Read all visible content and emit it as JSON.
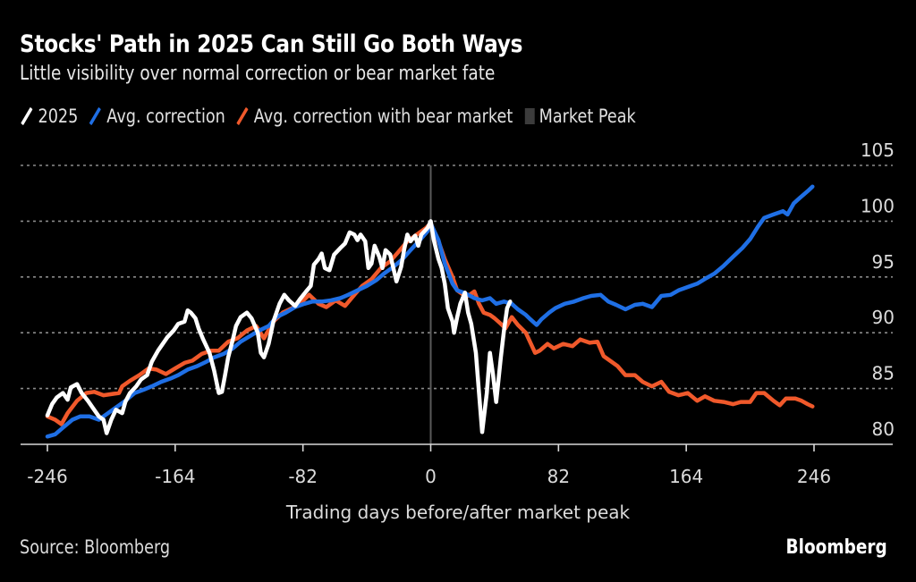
{
  "chart_data": {
    "type": "line",
    "title": "Stocks' Path in 2025 Can Still Go Both Ways",
    "subtitle": "Little visibility over normal correction or bear market fate",
    "xlabel": "Trading days before/after market peak",
    "ylabel": "",
    "xlim": [
      -246,
      246
    ],
    "ylim": [
      80,
      105
    ],
    "x_ticks": [
      -246,
      -164,
      -82,
      0,
      82,
      164,
      246
    ],
    "x_tick_labels": [
      "-246",
      "-164",
      "-82",
      "0",
      "82",
      "164",
      "246"
    ],
    "y_ticks": [
      80,
      85,
      90,
      95,
      100,
      105
    ],
    "y_tick_labels": [
      "80",
      "85",
      "90",
      "95",
      "100",
      "105"
    ],
    "y_axis_side": "right",
    "grid": "horizontal-dotted",
    "legend_position": "top-left",
    "legend": [
      {
        "name": "2025",
        "type": "line",
        "color": "#ffffff"
      },
      {
        "name": "Avg. correction",
        "type": "line",
        "color": "#1f6fe5"
      },
      {
        "name": "Avg. correction with bear market",
        "type": "line",
        "color": "#f0592b"
      },
      {
        "name": "Market Peak",
        "type": "marker",
        "color": "#3c3c3c"
      }
    ],
    "annotations": [
      {
        "type": "vertical-line",
        "x": 0,
        "label": "Market Peak",
        "color": "#5a5a5a"
      }
    ],
    "series": [
      {
        "name": "Avg. correction with bear market",
        "color": "#f0592b",
        "points": [
          [
            -246,
            82.5
          ],
          [
            -241,
            82.2
          ],
          [
            -237,
            81.8
          ],
          [
            -233,
            82.8
          ],
          [
            -227,
            83.9
          ],
          [
            -221,
            84.6
          ],
          [
            -216,
            84.7
          ],
          [
            -210,
            84.4
          ],
          [
            -200,
            84.6
          ],
          [
            -198,
            85.2
          ],
          [
            -193,
            85.7
          ],
          [
            -187,
            86.2
          ],
          [
            -181,
            86.8
          ],
          [
            -176,
            86.7
          ],
          [
            -170,
            86.3
          ],
          [
            -164,
            86.8
          ],
          [
            -158,
            87.3
          ],
          [
            -153,
            87.5
          ],
          [
            -147,
            88.1
          ],
          [
            -141,
            88.4
          ],
          [
            -136,
            88.4
          ],
          [
            -130,
            89.2
          ],
          [
            -124,
            89.5
          ],
          [
            -118,
            90.2
          ],
          [
            -112,
            90.6
          ],
          [
            -107,
            89.5
          ],
          [
            -101,
            91.0
          ],
          [
            -95,
            91.8
          ],
          [
            -89,
            92.2
          ],
          [
            -84,
            92.6
          ],
          [
            -78,
            93.4
          ],
          [
            -72,
            92.6
          ],
          [
            -67,
            92.3
          ],
          [
            -61,
            92.9
          ],
          [
            -55,
            92.4
          ],
          [
            -49,
            93.4
          ],
          [
            -44,
            94.2
          ],
          [
            -38,
            94.8
          ],
          [
            -32,
            95.8
          ],
          [
            -26,
            96.4
          ],
          [
            -21,
            97.2
          ],
          [
            -15,
            98.2
          ],
          [
            -9,
            98.8
          ],
          [
            -3,
            99.4
          ],
          [
            0,
            99.8
          ],
          [
            5,
            98.2
          ],
          [
            9,
            96.6
          ],
          [
            14,
            95.0
          ],
          [
            17,
            93.8
          ],
          [
            21,
            93.4
          ],
          [
            24,
            93.3
          ],
          [
            28,
            93.7
          ],
          [
            31,
            92.6
          ],
          [
            34,
            91.8
          ],
          [
            38,
            91.6
          ],
          [
            41,
            91.3
          ],
          [
            45,
            90.8
          ],
          [
            48,
            90.4
          ],
          [
            52,
            91.4
          ],
          [
            56,
            90.7
          ],
          [
            61,
            90.0
          ],
          [
            64,
            89.1
          ],
          [
            67,
            88.2
          ],
          [
            70,
            88.4
          ],
          [
            75,
            89.0
          ],
          [
            79,
            88.6
          ],
          [
            85,
            89.0
          ],
          [
            91,
            88.8
          ],
          [
            96,
            89.4
          ],
          [
            102,
            89.1
          ],
          [
            107,
            89.2
          ],
          [
            111,
            87.9
          ],
          [
            116,
            87.4
          ],
          [
            120,
            87.0
          ],
          [
            125,
            86.2
          ],
          [
            131,
            86.2
          ],
          [
            136,
            85.6
          ],
          [
            142,
            85.2
          ],
          [
            148,
            85.6
          ],
          [
            153,
            84.7
          ],
          [
            159,
            84.4
          ],
          [
            165,
            84.6
          ],
          [
            171,
            83.9
          ],
          [
            176,
            84.3
          ],
          [
            182,
            83.9
          ],
          [
            188,
            83.8
          ],
          [
            194,
            83.6
          ],
          [
            199,
            83.8
          ],
          [
            205,
            83.8
          ],
          [
            209,
            84.6
          ],
          [
            214,
            84.6
          ],
          [
            220,
            83.9
          ],
          [
            224,
            83.5
          ],
          [
            228,
            84.1
          ],
          [
            234,
            84.1
          ],
          [
            238,
            83.9
          ],
          [
            242,
            83.6
          ],
          [
            245,
            83.4
          ]
        ]
      },
      {
        "name": "Avg. correction",
        "color": "#1f6fe5",
        "points": [
          [
            -246,
            80.7
          ],
          [
            -241,
            80.9
          ],
          [
            -236,
            81.5
          ],
          [
            -230,
            82.2
          ],
          [
            -225,
            82.5
          ],
          [
            -219,
            82.5
          ],
          [
            -213,
            82.2
          ],
          [
            -207,
            82.8
          ],
          [
            -202,
            83.3
          ],
          [
            -196,
            83.9
          ],
          [
            -190,
            84.6
          ],
          [
            -184,
            84.9
          ],
          [
            -179,
            85.2
          ],
          [
            -173,
            85.6
          ],
          [
            -167,
            85.9
          ],
          [
            -162,
            86.2
          ],
          [
            -156,
            86.7
          ],
          [
            -150,
            87.0
          ],
          [
            -144,
            87.4
          ],
          [
            -139,
            87.8
          ],
          [
            -133,
            88.1
          ],
          [
            -127,
            88.6
          ],
          [
            -122,
            89.2
          ],
          [
            -116,
            89.7
          ],
          [
            -110,
            90.2
          ],
          [
            -104,
            90.6
          ],
          [
            -99,
            91.4
          ],
          [
            -93,
            91.8
          ],
          [
            -87,
            92.3
          ],
          [
            -81,
            92.6
          ],
          [
            -76,
            92.8
          ],
          [
            -70,
            92.8
          ],
          [
            -64,
            92.9
          ],
          [
            -58,
            93.1
          ],
          [
            -53,
            93.4
          ],
          [
            -47,
            93.8
          ],
          [
            -41,
            94.2
          ],
          [
            -35,
            94.7
          ],
          [
            -30,
            95.3
          ],
          [
            -24,
            95.9
          ],
          [
            -18,
            96.6
          ],
          [
            -13,
            97.4
          ],
          [
            -7,
            98.3
          ],
          [
            -2,
            99.1
          ],
          [
            0,
            99.8
          ],
          [
            5,
            98.3
          ],
          [
            9,
            96.2
          ],
          [
            14,
            94.4
          ],
          [
            17,
            93.8
          ],
          [
            21,
            93.6
          ],
          [
            24,
            93.4
          ],
          [
            28,
            93.1
          ],
          [
            33,
            92.9
          ],
          [
            38,
            93.1
          ],
          [
            42,
            92.6
          ],
          [
            47,
            92.8
          ],
          [
            52,
            92.6
          ],
          [
            56,
            92.1
          ],
          [
            61,
            91.6
          ],
          [
            64,
            91.2
          ],
          [
            68,
            90.7
          ],
          [
            71,
            91.2
          ],
          [
            76,
            91.8
          ],
          [
            80,
            92.2
          ],
          [
            86,
            92.6
          ],
          [
            92,
            92.8
          ],
          [
            98,
            93.1
          ],
          [
            103,
            93.3
          ],
          [
            109,
            93.4
          ],
          [
            114,
            92.8
          ],
          [
            119,
            92.5
          ],
          [
            125,
            92.1
          ],
          [
            131,
            92.5
          ],
          [
            136,
            92.6
          ],
          [
            142,
            92.3
          ],
          [
            148,
            93.3
          ],
          [
            154,
            93.4
          ],
          [
            159,
            93.8
          ],
          [
            165,
            94.1
          ],
          [
            171,
            94.4
          ],
          [
            177,
            94.9
          ],
          [
            182,
            95.3
          ],
          [
            188,
            96.0
          ],
          [
            194,
            96.8
          ],
          [
            200,
            97.6
          ],
          [
            205,
            98.4
          ],
          [
            210,
            99.5
          ],
          [
            214,
            100.3
          ],
          [
            220,
            100.6
          ],
          [
            226,
            100.9
          ],
          [
            229,
            100.6
          ],
          [
            233,
            101.6
          ],
          [
            237,
            102.1
          ],
          [
            242,
            102.7
          ],
          [
            245,
            103.1
          ]
        ]
      },
      {
        "name": "2025",
        "color": "#ffffff",
        "points": [
          [
            -246,
            82.6
          ],
          [
            -243,
            83.6
          ],
          [
            -240,
            84.2
          ],
          [
            -236,
            84.6
          ],
          [
            -233,
            84.0
          ],
          [
            -231,
            85.1
          ],
          [
            -227,
            85.4
          ],
          [
            -224,
            84.6
          ],
          [
            -220,
            83.9
          ],
          [
            -217,
            83.3
          ],
          [
            -213,
            82.5
          ],
          [
            -210,
            82.2
          ],
          [
            -208,
            81.0
          ],
          [
            -205,
            82.2
          ],
          [
            -202,
            83.1
          ],
          [
            -198,
            82.8
          ],
          [
            -196,
            83.8
          ],
          [
            -193,
            84.6
          ],
          [
            -189,
            85.2
          ],
          [
            -186,
            85.8
          ],
          [
            -182,
            86.2
          ],
          [
            -179,
            87.4
          ],
          [
            -175,
            88.4
          ],
          [
            -172,
            89.0
          ],
          [
            -169,
            89.6
          ],
          [
            -165,
            90.2
          ],
          [
            -162,
            90.8
          ],
          [
            -158,
            91.0
          ],
          [
            -156,
            92.0
          ],
          [
            -154,
            91.8
          ],
          [
            -151,
            91.3
          ],
          [
            -149,
            90.4
          ],
          [
            -146,
            89.4
          ],
          [
            -142,
            88.2
          ],
          [
            -139,
            86.6
          ],
          [
            -136,
            84.6
          ],
          [
            -134,
            84.7
          ],
          [
            -132,
            86.2
          ],
          [
            -130,
            87.8
          ],
          [
            -127,
            89.4
          ],
          [
            -125,
            90.6
          ],
          [
            -122,
            91.4
          ],
          [
            -118,
            91.8
          ],
          [
            -115,
            91.3
          ],
          [
            -111,
            90.0
          ],
          [
            -109,
            88.2
          ],
          [
            -107,
            87.8
          ],
          [
            -104,
            89.0
          ],
          [
            -101,
            91.0
          ],
          [
            -97,
            92.6
          ],
          [
            -94,
            93.4
          ],
          [
            -91,
            92.9
          ],
          [
            -87,
            92.4
          ],
          [
            -84,
            93.0
          ],
          [
            -80,
            93.7
          ],
          [
            -77,
            94.2
          ],
          [
            -75,
            96.1
          ],
          [
            -72,
            96.6
          ],
          [
            -70,
            97.1
          ],
          [
            -68,
            95.8
          ],
          [
            -65,
            95.6
          ],
          [
            -62,
            97.0
          ],
          [
            -58,
            97.6
          ],
          [
            -55,
            98.0
          ],
          [
            -52,
            99.0
          ],
          [
            -49,
            98.8
          ],
          [
            -47,
            98.3
          ],
          [
            -45,
            98.8
          ],
          [
            -42,
            98.2
          ],
          [
            -40,
            95.8
          ],
          [
            -38,
            96.2
          ],
          [
            -36,
            97.8
          ],
          [
            -33,
            96.8
          ],
          [
            -31,
            95.8
          ],
          [
            -29,
            97.4
          ],
          [
            -26,
            97.0
          ],
          [
            -24,
            95.8
          ],
          [
            -22,
            94.6
          ],
          [
            -19,
            95.9
          ],
          [
            -17,
            97.5
          ],
          [
            -15,
            98.8
          ],
          [
            -13,
            98.2
          ],
          [
            -10,
            98.7
          ],
          [
            -8,
            97.8
          ],
          [
            -6,
            98.8
          ],
          [
            -2,
            99.4
          ],
          [
            0,
            100.0
          ],
          [
            2,
            98.3
          ],
          [
            5,
            96.6
          ],
          [
            7,
            95.8
          ],
          [
            9,
            94.4
          ],
          [
            11,
            92.2
          ],
          [
            14,
            91.0
          ],
          [
            15,
            90.0
          ],
          [
            17,
            91.4
          ],
          [
            19,
            92.6
          ],
          [
            22,
            93.6
          ],
          [
            24,
            91.8
          ],
          [
            26,
            90.8
          ],
          [
            29,
            88.2
          ],
          [
            31,
            84.6
          ],
          [
            33,
            81.1
          ],
          [
            36,
            84.6
          ],
          [
            38,
            88.2
          ],
          [
            40,
            86.2
          ],
          [
            42,
            83.8
          ],
          [
            45,
            87.8
          ],
          [
            47,
            90.2
          ],
          [
            49,
            92.2
          ],
          [
            51,
            92.8
          ]
        ]
      }
    ]
  },
  "footer": {
    "source": "Source: Bloomberg",
    "brand": "Bloomberg"
  }
}
